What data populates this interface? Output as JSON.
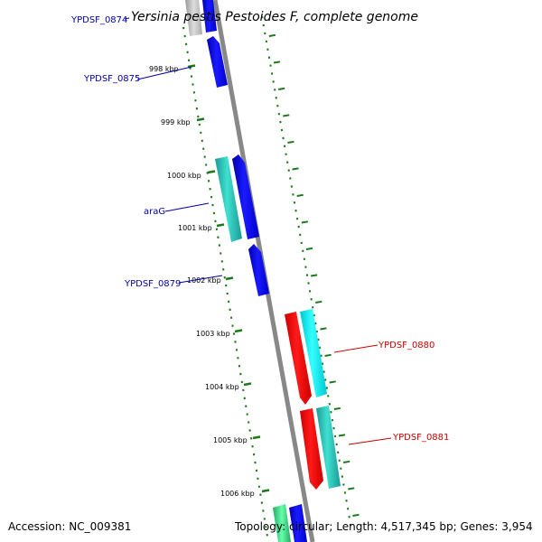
{
  "title": "Yersinia pestis Pestoides F, complete genome",
  "footer": {
    "accession": "Accession: NC_009381",
    "topology": "Topology: circular; Length: 4,517,345 bp; Genes: 3,954"
  },
  "tick_labels": [
    "998 kbp",
    "999 kbp",
    "1000 kbp",
    "1001 kbp",
    "1002 kbp",
    "1003 kbp",
    "1004 kbp",
    "1005 kbp",
    "1006 kbp"
  ],
  "gene_labels": [
    {
      "text": "YPDSF_0874",
      "strand": "forward"
    },
    {
      "text": "YPDSF_0875",
      "strand": "forward"
    },
    {
      "text": "araG",
      "strand": "forward"
    },
    {
      "text": "YPDSF_0879",
      "strand": "forward"
    },
    {
      "text": "YPDSF_0880",
      "strand": "reverse"
    },
    {
      "text": "YPDSF_0881",
      "strand": "reverse"
    }
  ],
  "colors": {
    "backbone": "#808080",
    "tick": "#1a7a1a",
    "forward_gene": "#0000dd",
    "forward_teal": "#20b2aa",
    "reverse_gene": "#ee0000",
    "reverse_cyan": "#00e5ee",
    "label_blue": "#0000aa",
    "label_red": "#cc0000"
  }
}
